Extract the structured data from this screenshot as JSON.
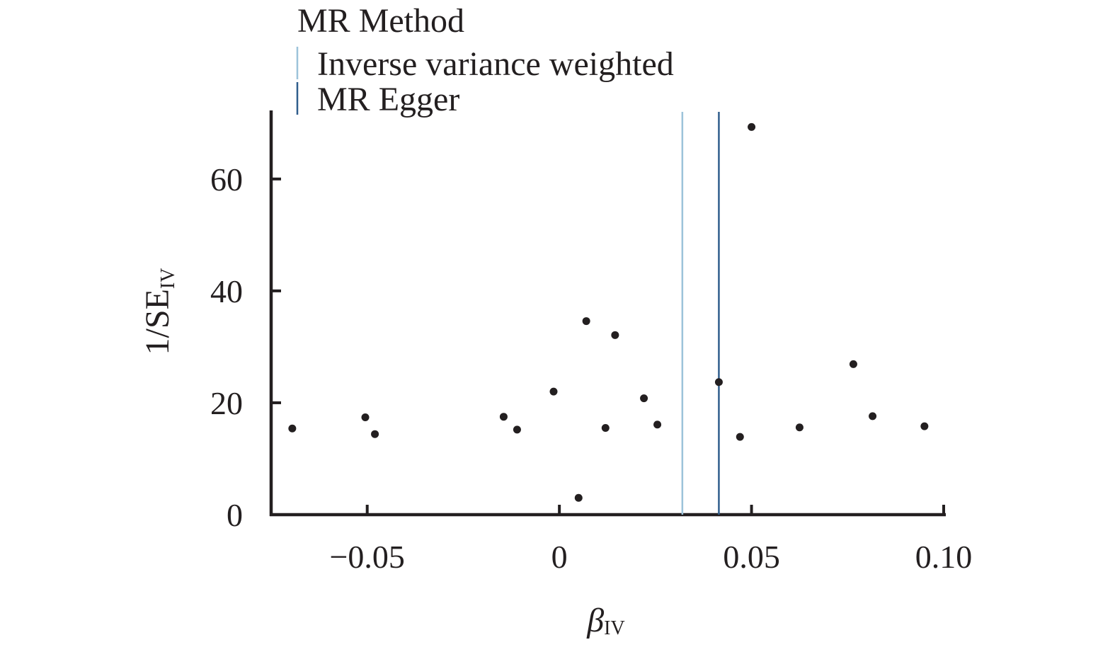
{
  "chart_data": {
    "type": "scatter",
    "title": "",
    "legend": {
      "title": "MR Method",
      "placement": "top",
      "entries": [
        {
          "label": "Inverse variance weighted",
          "color": "#9cc3da",
          "estimate": 0.032
        },
        {
          "label": "MR Egger",
          "color": "#2f5d8c",
          "estimate": 0.0415
        }
      ]
    },
    "xlabel": {
      "main": "β",
      "sub": "IV"
    },
    "ylabel": {
      "main": "1/SE",
      "sub": "IV"
    },
    "xlim": [
      -0.075,
      0.1
    ],
    "ylim": [
      0,
      72
    ],
    "xticks": [
      {
        "value": -0.05,
        "label": "−0.05"
      },
      {
        "value": 0,
        "label": "0"
      },
      {
        "value": 0.05,
        "label": "0.05"
      },
      {
        "value": 0.1,
        "label": "0.10"
      }
    ],
    "yticks": [
      {
        "value": 0,
        "label": "0"
      },
      {
        "value": 20,
        "label": "20"
      },
      {
        "value": 40,
        "label": "40"
      },
      {
        "value": 60,
        "label": "60"
      }
    ],
    "grid": false,
    "point_color": "#231f20",
    "points": [
      {
        "x": -0.0695,
        "y": 15.4
      },
      {
        "x": -0.0505,
        "y": 17.4
      },
      {
        "x": -0.048,
        "y": 14.4
      },
      {
        "x": -0.0145,
        "y": 17.5
      },
      {
        "x": -0.011,
        "y": 15.2
      },
      {
        "x": -0.0015,
        "y": 22.0
      },
      {
        "x": 0.005,
        "y": 3.0
      },
      {
        "x": 0.007,
        "y": 34.6
      },
      {
        "x": 0.012,
        "y": 15.5
      },
      {
        "x": 0.0145,
        "y": 32.1
      },
      {
        "x": 0.022,
        "y": 20.8
      },
      {
        "x": 0.0255,
        "y": 16.1
      },
      {
        "x": 0.0415,
        "y": 23.7
      },
      {
        "x": 0.047,
        "y": 13.9
      },
      {
        "x": 0.05,
        "y": 69.3
      },
      {
        "x": 0.0625,
        "y": 15.6
      },
      {
        "x": 0.0765,
        "y": 26.9
      },
      {
        "x": 0.0815,
        "y": 17.6
      },
      {
        "x": 0.095,
        "y": 15.8
      }
    ]
  }
}
